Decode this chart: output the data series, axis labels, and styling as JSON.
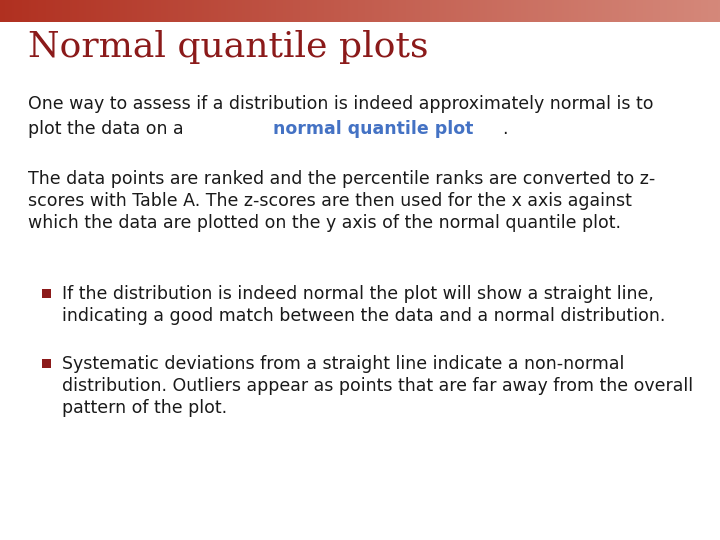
{
  "title": "Normal quantile plots",
  "title_color": "#8B1A1A",
  "title_fontsize": 26,
  "header_bar_color_left": "#B03020",
  "header_bar_color_right": "#D4887A",
  "background_color": "#FFFFFF",
  "body_text_color": "#1a1a1a",
  "highlight_color": "#4472C4",
  "para1_line1": "One way to assess if a distribution is indeed approximately normal is to",
  "para1_line2_before": "plot the data on a ",
  "para1_line2_highlight": "normal quantile plot",
  "para1_line2_after": ".",
  "para2_line1": "The data points are ranked and the percentile ranks are converted to z-",
  "para2_line2": "scores with Table A. The z-scores are then used for the x axis against",
  "para2_line3": "which the data are plotted on the y axis of the normal quantile plot.",
  "bullet1_line1": "If the distribution is indeed normal the plot will show a straight line,",
  "bullet1_line2": "indicating a good match between the data and a normal distribution.",
  "bullet2_line1": "Systematic deviations from a straight line indicate a non-normal",
  "bullet2_line2": "distribution. Outliers appear as points that are far away from the overall",
  "bullet2_line3": "pattern of the plot.",
  "body_fontsize": 12.5,
  "bullet_fontsize": 12.5
}
